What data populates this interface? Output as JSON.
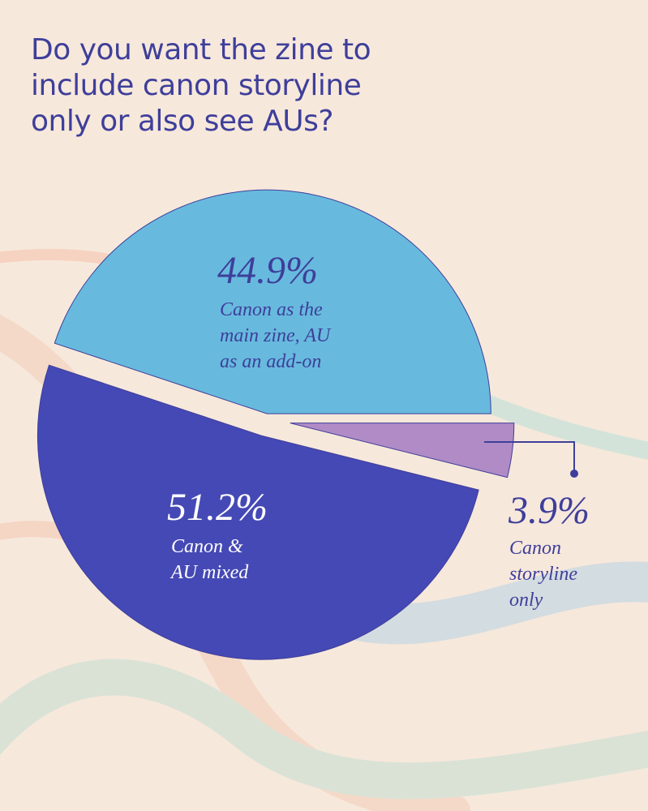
{
  "chart_data": {
    "type": "pie",
    "title": "Do you want the zine to include canon storyline only or also see AUs?",
    "categories": [
      "Canon as the main zine, AU as an add-on",
      "Canon & AU mixed",
      "Canon storyline only"
    ],
    "values": [
      44.9,
      51.2,
      3.9
    ],
    "value_labels": [
      "44.9%",
      "51.2%",
      "3.9%"
    ],
    "colors": [
      "#67bade",
      "#4549b5",
      "#b08bc6"
    ]
  }
}
